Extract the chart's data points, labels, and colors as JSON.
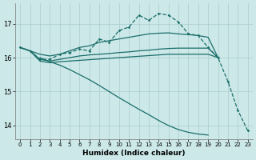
{
  "xlabel": "Humidex (Indice chaleur)",
  "background_color": "#cce8e8",
  "grid_color": "#aacccc",
  "line_color": "#1a6e6a",
  "xlim": [
    -0.5,
    23.5
  ],
  "ylim": [
    13.6,
    17.6
  ],
  "yticks": [
    14,
    15,
    16,
    17
  ],
  "xticks": [
    0,
    1,
    2,
    3,
    4,
    5,
    6,
    7,
    8,
    9,
    10,
    11,
    12,
    13,
    14,
    15,
    16,
    17,
    18,
    19,
    20,
    21,
    22,
    23
  ],
  "series_upper_line": [
    16.3,
    16.2,
    16.1,
    16.05,
    16.1,
    16.2,
    16.3,
    16.35,
    16.45,
    16.5,
    16.55,
    16.6,
    16.65,
    16.7,
    16.72,
    16.73,
    16.7,
    16.68,
    16.65,
    16.6,
    16.0,
    null,
    null,
    null
  ],
  "series_mid_line": [
    16.3,
    16.2,
    15.95,
    15.9,
    15.95,
    16.0,
    16.05,
    16.08,
    16.1,
    16.12,
    16.15,
    16.17,
    16.2,
    16.22,
    16.25,
    16.27,
    16.28,
    16.28,
    16.28,
    16.28,
    16.0,
    null,
    null,
    null
  ],
  "series_low_flat": [
    16.3,
    16.2,
    15.9,
    15.85,
    15.88,
    15.9,
    15.92,
    15.94,
    15.96,
    15.98,
    16.0,
    16.02,
    16.04,
    16.06,
    16.08,
    16.1,
    16.1,
    16.1,
    16.1,
    16.1,
    16.0,
    null,
    null,
    null
  ],
  "series_dotted": [
    16.3,
    16.2,
    15.95,
    15.95,
    16.1,
    16.15,
    16.25,
    16.2,
    16.55,
    16.45,
    16.8,
    16.9,
    17.25,
    17.1,
    17.3,
    17.25,
    17.05,
    16.7,
    16.65,
    16.3,
    16.0,
    15.3,
    14.45,
    13.85
  ],
  "series_diagonal": [
    null,
    null,
    16.0,
    15.88,
    15.78,
    15.65,
    15.5,
    15.35,
    15.18,
    15.0,
    14.82,
    14.65,
    14.48,
    14.32,
    14.15,
    14.0,
    13.88,
    13.8,
    13.75,
    13.72,
    null,
    null,
    null,
    null
  ]
}
